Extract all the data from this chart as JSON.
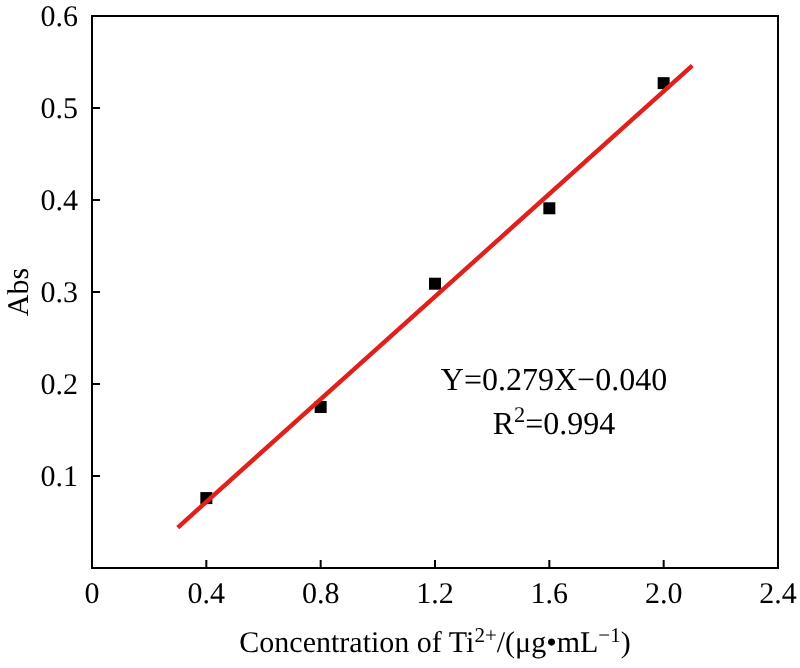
{
  "chart_data": {
    "type": "scatter",
    "xlabel": "Concentration of Ti$^{2+}$/(μg•mL$^{−1}$)",
    "ylabel": "Abs",
    "xlim": [
      0,
      2.4
    ],
    "ylim": [
      0,
      0.6
    ],
    "xticks": [
      0,
      0.4,
      0.8,
      1.2,
      1.6,
      {
        "value": 2.0,
        "label": "2.0"
      },
      2.4
    ],
    "yticks": [
      0.1,
      0.2,
      0.3,
      0.4,
      0.5,
      0.6
    ],
    "series": [
      {
        "color": "#000000",
        "marker": "square",
        "x": [
          0.4,
          0.8,
          1.2,
          1.6,
          2.0
        ],
        "values": [
          0.076,
          0.175,
          0.309,
          0.391,
          0.527
        ]
      },
      {
        "type": "line",
        "marker": "none",
        "color": "#e0201b",
        "x": [
          0.3,
          2.1
        ],
        "values": [
          0.044,
          0.546
        ]
      }
    ],
    "annotations": [
      "Y=0.279X−0.040",
      "R$^{2}$=0.994"
    ]
  }
}
